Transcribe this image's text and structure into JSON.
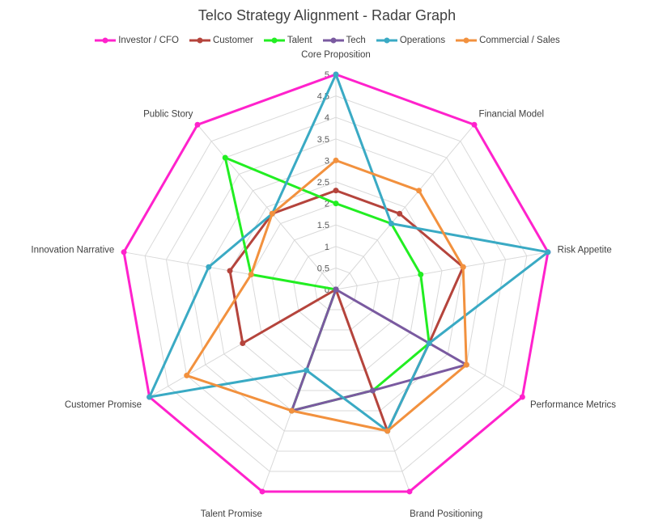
{
  "chart_data": {
    "type": "radar",
    "title": "Telco Strategy Alignment - Radar Graph",
    "categories": [
      "Core Proposition",
      "Financial Model",
      "Risk Appetite",
      "Performance Metrics",
      "Brand Positioning",
      "Talent Promise",
      "Customer Promise",
      "Innovation Narrative",
      "Public Story"
    ],
    "rlim": [
      0,
      5
    ],
    "ticks": [
      0,
      0.5,
      1,
      1.5,
      2,
      2.5,
      3,
      3.5,
      4,
      4.5,
      5
    ],
    "tick_labels": [
      "0",
      "0.5",
      "1",
      "1.5",
      "2",
      "2.5",
      "3",
      "3.5",
      "4",
      "4.5",
      "5"
    ],
    "grid": true,
    "legend_position": "top",
    "series": [
      {
        "name": "Investor / CFO",
        "color": "#FF22CC",
        "values": [
          5,
          5,
          5,
          5,
          5,
          5,
          5,
          5,
          5
        ]
      },
      {
        "name": "Customer",
        "color": "#B5443C",
        "values": [
          2.3,
          2.3,
          3,
          2.5,
          3.5,
          0,
          2.5,
          2.5,
          2.3
        ]
      },
      {
        "name": "Talent",
        "color": "#22EE22",
        "values": [
          2,
          2,
          2,
          2.5,
          2.5,
          3,
          0,
          2,
          4
        ]
      },
      {
        "name": "Tech",
        "color": "#7A5AA0",
        "values": [
          0,
          0,
          0,
          3.5,
          2.5,
          3,
          0,
          0,
          0
        ]
      },
      {
        "name": "Operations",
        "color": "#3AAAC4",
        "values": [
          5,
          2,
          5,
          2.5,
          3.5,
          2,
          5,
          3,
          2.3
        ]
      },
      {
        "name": "Commercial / Sales",
        "color": "#F2913E",
        "values": [
          3,
          3,
          3,
          3.5,
          3.5,
          3,
          4,
          2,
          2.3
        ]
      }
    ]
  }
}
